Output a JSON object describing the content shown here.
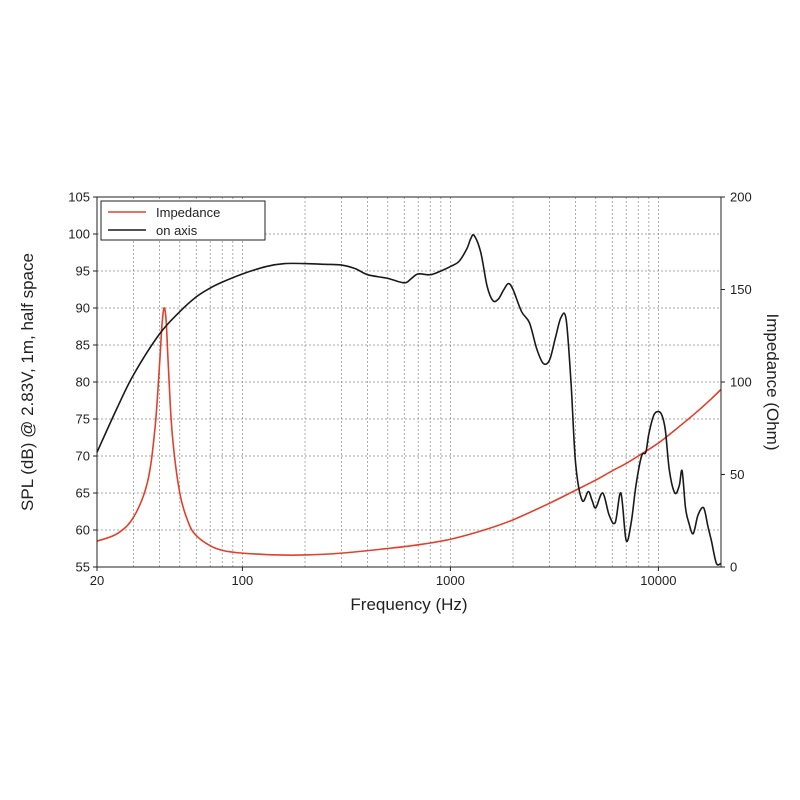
{
  "chart_data": {
    "type": "line",
    "xlabel": "Frequency (Hz)",
    "ylabel": "SPL (dB) @ 2.83V, 1m, half space",
    "y2label": "Impedance (Ohm)",
    "x_scale": "log",
    "xlim": [
      20,
      20000
    ],
    "ylim": [
      55,
      105
    ],
    "y2lim": [
      0,
      200
    ],
    "x_ticks": [
      20,
      100,
      1000,
      10000
    ],
    "y_ticks": [
      55,
      60,
      65,
      70,
      75,
      80,
      85,
      90,
      95,
      100,
      105
    ],
    "y2_ticks": [
      0,
      50,
      100,
      150,
      200
    ],
    "grid": true,
    "legend_position": "top-left",
    "series": [
      {
        "name": "Impedance",
        "axis": "right",
        "color": "#e0402c",
        "x": [
          20,
          25,
          30,
          35,
          38,
          40,
          41,
          42,
          43,
          44,
          46,
          50,
          55,
          60,
          70,
          80,
          100,
          150,
          200,
          300,
          500,
          700,
          1000,
          1500,
          2000,
          3000,
          4000,
          5000,
          6000,
          7000,
          8000,
          10000,
          12000,
          15000,
          18000,
          20000
        ],
        "values": [
          14,
          18,
          27,
          46,
          75,
          110,
          130,
          140,
          133,
          110,
          72,
          40,
          24,
          17,
          11.5,
          9,
          7.5,
          6.5,
          6.5,
          7.5,
          10,
          12,
          15,
          20.5,
          25.5,
          34.5,
          41.5,
          47,
          52,
          56,
          60,
          67,
          74,
          83,
          91,
          96
        ]
      },
      {
        "name": "on axis",
        "axis": "left",
        "color": "#1a1a1a",
        "x": [
          20,
          25,
          30,
          40,
          50,
          60,
          70,
          80,
          100,
          130,
          160,
          200,
          250,
          300,
          350,
          400,
          500,
          600,
          650,
          700,
          800,
          900,
          1000,
          1100,
          1200,
          1250,
          1300,
          1400,
          1500,
          1600,
          1700,
          1800,
          1900,
          2000,
          2200,
          2400,
          2600,
          2800,
          3000,
          3200,
          3400,
          3600,
          3800,
          4000,
          4300,
          4600,
          4800,
          5000,
          5400,
          5800,
          6200,
          6600,
          7000,
          7400,
          7800,
          8300,
          8700,
          9000,
          9500,
          10000,
          10400,
          10800,
          11300,
          12000,
          12600,
          13000,
          13500,
          14000,
          14700,
          15500,
          16500,
          17300,
          18000,
          19000,
          20000
        ],
        "values": [
          70.5,
          76.5,
          81,
          86.5,
          89.5,
          91.5,
          92.7,
          93.5,
          94.6,
          95.6,
          96,
          96,
          95.9,
          95.8,
          95.3,
          94.5,
          94,
          93.4,
          94,
          94.6,
          94.5,
          95,
          95.6,
          96.3,
          98,
          99.3,
          99.8,
          97.5,
          93,
          91,
          91.2,
          92.4,
          93.3,
          92.5,
          89.5,
          88,
          84.5,
          82.5,
          83,
          86,
          88.7,
          88.5,
          80,
          69,
          64,
          65.2,
          64,
          63,
          65,
          62,
          61,
          65,
          58.6,
          61,
          66,
          70,
          70.5,
          73,
          75.5,
          76,
          75.5,
          73.5,
          68,
          65,
          66,
          68,
          63,
          61,
          59.5,
          62,
          63,
          60.5,
          58.5,
          55.5,
          55.5
        ]
      }
    ]
  }
}
